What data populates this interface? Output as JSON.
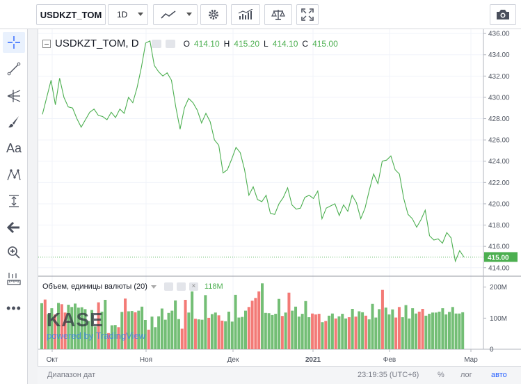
{
  "toolbar": {
    "symbol": "USDKZT_TOM",
    "interval": "1D",
    "icons": [
      "line-chart-icon",
      "gear-icon",
      "indicators-icon",
      "compare-scale-icon",
      "fullscreen-icon",
      "camera-icon"
    ]
  },
  "legend": {
    "title": "USDKZT_TOM, D",
    "o_label": "O",
    "o_value": "414.10",
    "h_label": "H",
    "h_value": "415.20",
    "l_label": "L",
    "l_value": "414.10",
    "c_label": "C",
    "c_value": "415.00",
    "colors": {
      "up": "#4caf50",
      "down": "#ef5350"
    }
  },
  "volume_legend": {
    "title": "Объем, единицы валюты (20)",
    "value": "118M"
  },
  "watermark": {
    "logo": "KASE",
    "powered": "powered by TradingView"
  },
  "price_axis": {
    "ticks": [
      "436.00",
      "434.00",
      "432.00",
      "430.00",
      "428.00",
      "426.00",
      "424.00",
      "422.00",
      "420.00",
      "418.00",
      "416.00",
      "414.00"
    ],
    "last_price": "415.00"
  },
  "volume_axis": {
    "ticks": [
      "200M",
      "100M",
      "0"
    ]
  },
  "time_axis": {
    "ticks": [
      "Окт",
      "Ноя",
      "Дек",
      "2021",
      "Фев",
      "Мар"
    ]
  },
  "bottom": {
    "range_label": "Диапазон дат",
    "clock": "23:19:35 (UTC+6)",
    "percent": "%",
    "log": "лог",
    "auto": "авто"
  },
  "chart_data": {
    "type": "line",
    "title": "USDKZT_TOM, D",
    "x_range_labels": [
      "Окт",
      "Ноя",
      "Дек",
      "2021",
      "Фев",
      "Мар"
    ],
    "ylim": [
      413.2,
      436.4
    ],
    "series": [
      {
        "name": "USDKZT_TOM",
        "values": [
          428.4,
          430.0,
          431.6,
          429.3,
          431.8,
          430.0,
          429.1,
          429.0,
          428.0,
          427.2,
          427.9,
          428.6,
          428.9,
          428.3,
          428.2,
          427.9,
          428.6,
          428.1,
          428.9,
          428.5,
          430.0,
          429.5,
          430.9,
          432.8,
          435.1,
          435.3,
          433.0,
          432.4,
          432.0,
          432.3,
          431.6,
          429.1,
          427.0,
          429.0,
          429.9,
          429.5,
          428.8,
          427.6,
          428.5,
          427.7,
          426.0,
          425.5,
          422.9,
          423.2,
          424.2,
          425.3,
          424.8,
          423.2,
          420.8,
          421.6,
          420.4,
          420.2,
          420.8,
          419.1,
          419.0,
          420.0,
          420.6,
          421.5,
          419.9,
          419.5,
          419.6,
          420.6,
          420.8,
          420.5,
          421.2,
          418.6,
          419.6,
          419.8,
          420.0,
          418.9,
          419.9,
          419.3,
          420.8,
          420.1,
          418.6,
          419.6,
          421.3,
          422.8,
          421.9,
          424.0,
          424.1,
          424.5,
          423.2,
          422.8,
          420.5,
          419.0,
          418.6,
          417.8,
          418.5,
          419.4,
          417.0,
          416.6,
          416.7,
          416.3,
          417.3,
          416.8,
          414.6,
          415.6,
          415.0
        ]
      }
    ],
    "volume": {
      "ylim": [
        0,
        215
      ],
      "values": [
        148,
        160,
        113,
        132,
        112,
        149,
        145,
        118,
        143,
        136,
        147,
        134,
        135,
        129,
        91,
        126,
        73,
        151,
        121,
        159,
        52,
        77,
        78,
        71,
        120,
        163,
        122,
        123,
        119,
        124,
        137,
        94,
        63,
        105,
        71,
        106,
        131,
        95,
        117,
        124,
        157,
        97,
        66,
        159,
        118,
        186,
        98,
        96,
        95,
        174,
        101,
        113,
        118,
        109,
        92,
        90,
        121,
        89,
        175,
        102,
        104,
        124,
        136,
        156,
        165,
        186,
        212,
        117,
        116,
        110,
        114,
        162,
        107,
        118,
        182,
        124,
        137,
        105,
        114,
        155,
        103,
        115,
        112,
        114,
        87,
        91,
        108,
        115,
        99,
        106,
        114,
        99,
        103,
        130,
        105,
        122,
        119,
        108,
        96,
        146,
        102,
        129,
        191,
        134,
        112,
        128,
        102,
        136,
        103,
        142,
        99,
        132,
        115,
        121,
        130,
        108,
        114,
        118,
        118,
        121,
        132,
        112,
        120,
        136,
        115,
        115,
        119
      ],
      "up": [
        1,
        0,
        1,
        1,
        0,
        1,
        0,
        0,
        1,
        1,
        1,
        1,
        1,
        1,
        1,
        1,
        1,
        0,
        1,
        1,
        0,
        1,
        1,
        0,
        1,
        0,
        1,
        1,
        0,
        1,
        1,
        1,
        0,
        1,
        1,
        1,
        1,
        1,
        1,
        1,
        1,
        1,
        0,
        0,
        1,
        1,
        0,
        1,
        1,
        1,
        0,
        1,
        1,
        0,
        0,
        1,
        1,
        1,
        1,
        1,
        1,
        1,
        0,
        0,
        0,
        0,
        1,
        1,
        1,
        1,
        1,
        1,
        0,
        1,
        0,
        1,
        1,
        1,
        1,
        1,
        1,
        0,
        0,
        0,
        1,
        0,
        1,
        1,
        0,
        1,
        1,
        1,
        0,
        1,
        0,
        1,
        1,
        0,
        1,
        1,
        1,
        1,
        0,
        1,
        1,
        1,
        0,
        0,
        1,
        1,
        1,
        1,
        1,
        0,
        0,
        1,
        1,
        1,
        1,
        1,
        1,
        1,
        1,
        1,
        1,
        1,
        1
      ]
    }
  }
}
